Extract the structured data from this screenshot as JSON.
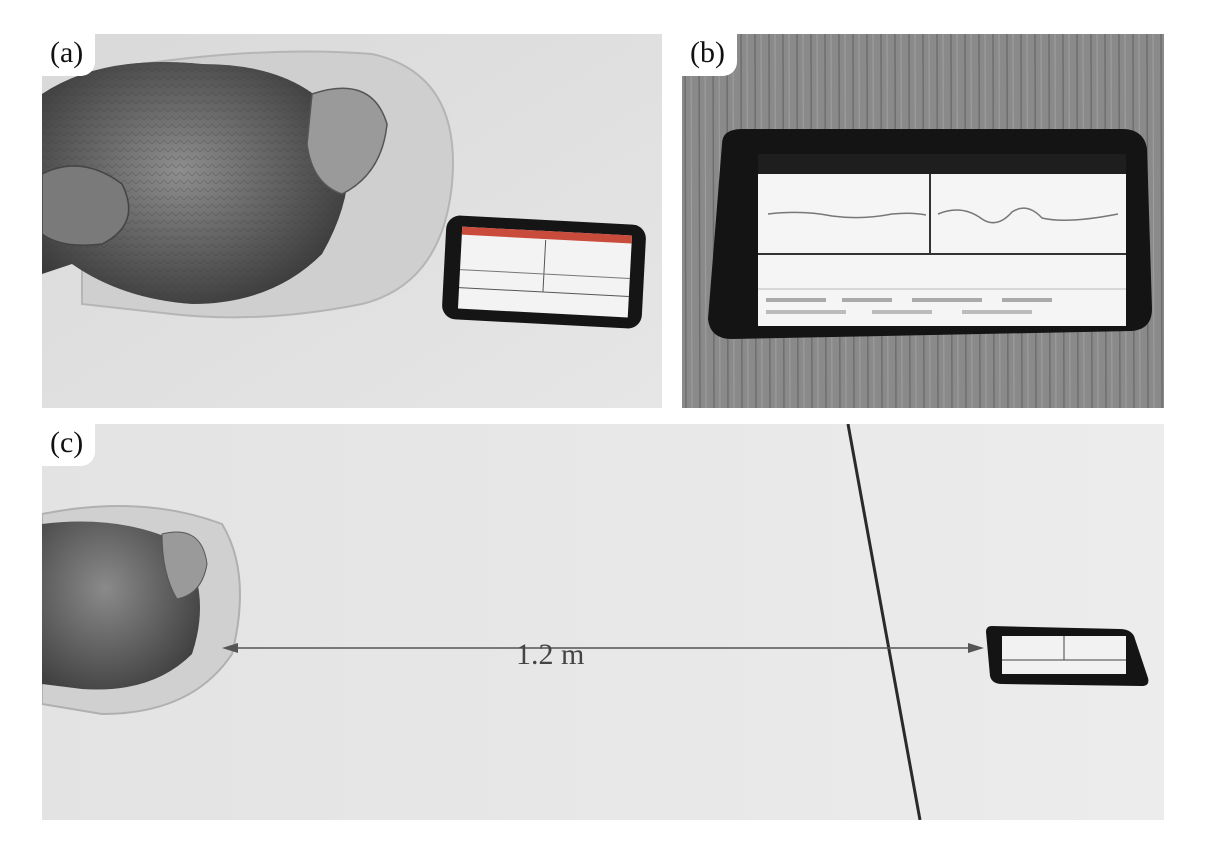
{
  "figure": {
    "panels": [
      {
        "label": "(a)"
      },
      {
        "label": "(b)"
      },
      {
        "label": "(c)",
        "distance_label": "1.2 m"
      }
    ]
  }
}
